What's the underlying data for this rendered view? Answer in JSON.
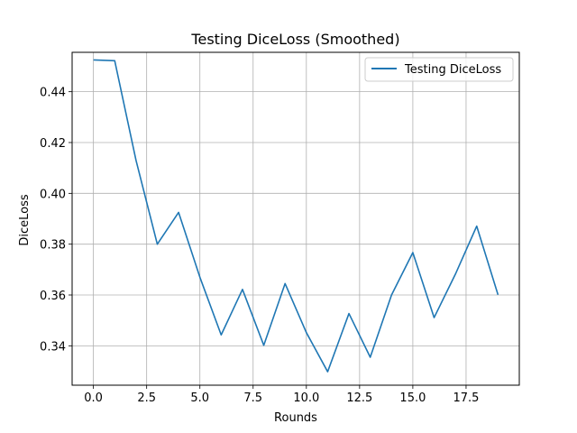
{
  "chart_data": {
    "type": "line",
    "title": "Testing DiceLoss (Smoothed)",
    "xlabel": "Rounds",
    "ylabel": "DiceLoss",
    "xlim": [
      -1.0,
      20.0
    ],
    "ylim": [
      0.3245,
      0.4555
    ],
    "x_ticks": [
      0.0,
      2.5,
      5.0,
      7.5,
      10.0,
      12.5,
      15.0,
      17.5
    ],
    "x_tick_labels": [
      "0.0",
      "2.5",
      "5.0",
      "7.5",
      "10.0",
      "12.5",
      "15.0",
      "17.5"
    ],
    "y_ticks": [
      0.34,
      0.36,
      0.38,
      0.4,
      0.42,
      0.44
    ],
    "y_tick_labels": [
      "0.34",
      "0.36",
      "0.38",
      "0.40",
      "0.42",
      "0.44"
    ],
    "grid": true,
    "legend_position": "top-right",
    "series": [
      {
        "name": "Testing DiceLoss",
        "color": "#1f77b4",
        "x": [
          0,
          1,
          2,
          3,
          4,
          5,
          6,
          7,
          8,
          9,
          10,
          11,
          12,
          13,
          14,
          15,
          16,
          17,
          18,
          19
        ],
        "values": [
          0.4525,
          0.4522,
          0.413,
          0.38,
          0.3925,
          0.367,
          0.3443,
          0.3622,
          0.3402,
          0.3645,
          0.3452,
          0.3298,
          0.3527,
          0.3355,
          0.36,
          0.3767,
          0.3511,
          0.3682,
          0.3871,
          0.3601
        ]
      }
    ]
  }
}
